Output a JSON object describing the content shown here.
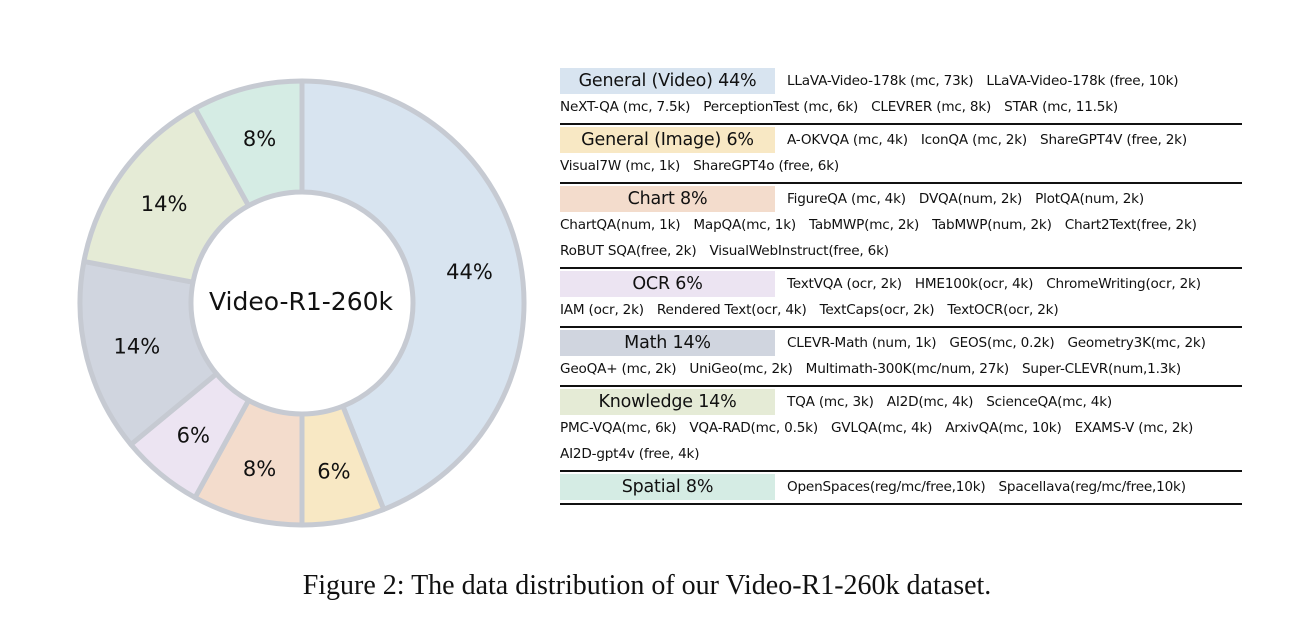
{
  "chart_data": {
    "type": "pie",
    "style": "donut",
    "center_label": "Video-R1-260k",
    "slices": [
      {
        "name": "General (Video)",
        "value": 44,
        "label": "44%",
        "color": "#d8e4f0"
      },
      {
        "name": "Chart",
        "value": 8,
        "label": "8%",
        "color": "#f3dccc"
      },
      {
        "name": "General (Image)",
        "value": 6,
        "label": "6%",
        "color": "#f8e8c4"
      },
      {
        "name": "Knowledge",
        "value": 14,
        "label": "14%",
        "color": "#e5ebd6"
      },
      {
        "name": "OCR",
        "value": 6,
        "label": "6%",
        "color": "#ece4f2"
      },
      {
        "name": "Math",
        "value": 14,
        "label": "14%",
        "color": "#d0d5df"
      },
      {
        "name": "Spatial",
        "value": 8,
        "label": "8%",
        "color": "#d5ece4"
      }
    ],
    "draw_order": [
      "General (Video)",
      "General (Image)",
      "Chart",
      "OCR",
      "Math",
      "Knowledge",
      "Spatial"
    ]
  },
  "legend": [
    {
      "label": "General (Video) 44%",
      "color": "#d8e4f0",
      "lines": [
        [
          "LLaVA-Video-178k (mc, 73k)",
          "LLaVA-Video-178k (free, 10k)"
        ],
        [
          "NeXT-QA (mc, 7.5k)",
          "PerceptionTest (mc, 6k)",
          "CLEVRER (mc, 8k)",
          "STAR (mc, 11.5k)"
        ]
      ]
    },
    {
      "label": "General (Image) 6%",
      "color": "#f8e8c4",
      "lines": [
        [
          "A-OKVQA (mc, 4k)",
          "IconQA (mc, 2k)",
          "ShareGPT4V (free, 2k)"
        ],
        [
          "Visual7W (mc, 1k)",
          "ShareGPT4o (free, 6k)"
        ]
      ]
    },
    {
      "label": "Chart 8%",
      "color": "#f3dccc",
      "lines": [
        [
          "FigureQA (mc, 4k)",
          "DVQA(num, 2k)",
          "PlotQA(num, 2k)"
        ],
        [
          "ChartQA(num, 1k)",
          "MapQA(mc, 1k)",
          "TabMWP(mc, 2k)",
          "TabMWP(num, 2k)",
          "Chart2Text(free, 2k)"
        ],
        [
          "RoBUT SQA(free, 2k)",
          "VisualWebInstruct(free, 6k)"
        ]
      ]
    },
    {
      "label": "OCR 6%",
      "color": "#ece4f2",
      "lines": [
        [
          "TextVQA (ocr, 2k)",
          "HME100k(ocr, 4k)",
          "ChromeWriting(ocr, 2k)"
        ],
        [
          "IAM (ocr, 2k)",
          "Rendered Text(ocr, 4k)",
          "TextCaps(ocr, 2k)",
          "TextOCR(ocr, 2k)"
        ]
      ]
    },
    {
      "label": "Math 14%",
      "color": "#d0d5df",
      "lines": [
        [
          "CLEVR-Math (num, 1k)",
          "GEOS(mc, 0.2k)",
          "Geometry3K(mc, 2k)"
        ],
        [
          "GeoQA+ (mc, 2k)",
          "UniGeo(mc, 2k)",
          "Multimath-300K(mc/num, 27k)",
          "Super-CLEVR(num,1.3k)"
        ]
      ]
    },
    {
      "label": "Knowledge 14%",
      "color": "#e5ebd6",
      "lines": [
        [
          "TQA (mc, 3k)",
          "AI2D(mc, 4k)",
          "ScienceQA(mc, 4k)"
        ],
        [
          "PMC-VQA(mc, 6k)",
          "VQA-RAD(mc, 0.5k)",
          "GVLQA(mc, 4k)",
          "ArxivQA(mc, 10k)",
          "EXAMS-V (mc, 2k)"
        ],
        [
          "AI2D-gpt4v (free, 4k)"
        ]
      ]
    },
    {
      "label": "Spatial 8%",
      "color": "#d5ece4",
      "lines": [
        [
          "OpenSpaces(reg/mc/free,10k)",
          "Spacellava(reg/mc/free,10k)"
        ]
      ]
    }
  ],
  "caption": "Figure 2:  The data distribution of our Video-R1-260k dataset."
}
